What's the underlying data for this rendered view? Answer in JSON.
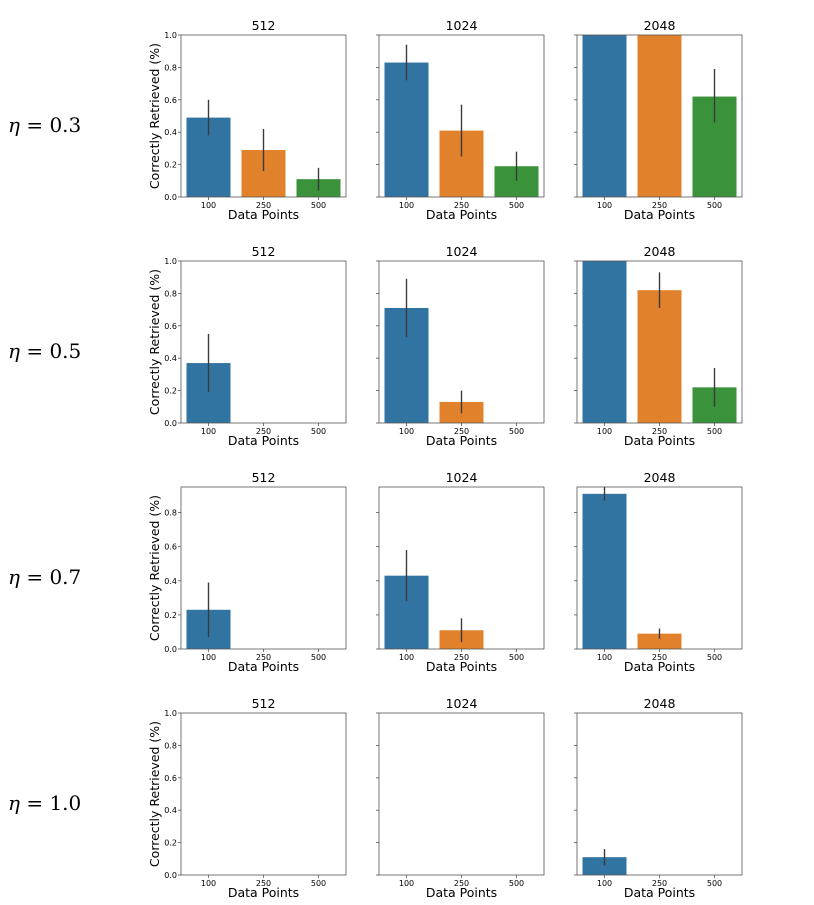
{
  "figure": {
    "row_symbol": "η",
    "xlabel": "Data Points",
    "ylabel": "Correctly Retrieved (%)",
    "colors": {
      "100": "#3274a1",
      "250": "#e1812c",
      "500": "#3a923a"
    }
  },
  "chart_data": [
    {
      "type": "bar",
      "row": "η = 0.3",
      "eta": "0.3",
      "title": "512",
      "categories": [
        "100",
        "250",
        "500"
      ],
      "values": [
        0.49,
        0.29,
        0.11
      ],
      "errors": [
        [
          0.38,
          0.6
        ],
        [
          0.16,
          0.42
        ],
        [
          0.04,
          0.18
        ]
      ],
      "ylim": [
        0,
        1.0
      ],
      "yticks": [
        "0.0",
        "0.2",
        "0.4",
        "0.6",
        "0.8",
        "1.0"
      ],
      "xlabel": "Data Points",
      "ylabel": "Correctly Retrieved (%)"
    },
    {
      "type": "bar",
      "row": "η = 0.3",
      "eta": "0.3",
      "title": "1024",
      "categories": [
        "100",
        "250",
        "500"
      ],
      "values": [
        0.83,
        0.41,
        0.19
      ],
      "errors": [
        [
          0.72,
          0.94
        ],
        [
          0.25,
          0.57
        ],
        [
          0.1,
          0.28
        ]
      ],
      "ylim": [
        0,
        1.0
      ],
      "yticks": [],
      "xlabel": "Data Points",
      "ylabel": ""
    },
    {
      "type": "bar",
      "row": "η = 0.3",
      "eta": "0.3",
      "title": "2048",
      "categories": [
        "100",
        "250",
        "500"
      ],
      "values": [
        1.0,
        1.0,
        0.62
      ],
      "errors": [
        null,
        null,
        [
          0.46,
          0.79
        ]
      ],
      "ylim": [
        0,
        1.0
      ],
      "yticks": [],
      "xlabel": "Data Points",
      "ylabel": ""
    },
    {
      "type": "bar",
      "row": "η = 0.5",
      "eta": "0.5",
      "title": "512",
      "categories": [
        "100",
        "250",
        "500"
      ],
      "values": [
        0.37,
        0,
        0
      ],
      "errors": [
        [
          0.19,
          0.55
        ],
        null,
        null
      ],
      "ylim": [
        0,
        1.0
      ],
      "yticks": [
        "0.0",
        "0.2",
        "0.4",
        "0.6",
        "0.8",
        "1.0"
      ],
      "xlabel": "Data Points",
      "ylabel": "Correctly Retrieved (%)"
    },
    {
      "type": "bar",
      "row": "η = 0.5",
      "eta": "0.5",
      "title": "1024",
      "categories": [
        "100",
        "250",
        "500"
      ],
      "values": [
        0.71,
        0.13,
        0
      ],
      "errors": [
        [
          0.53,
          0.89
        ],
        [
          0.06,
          0.2
        ],
        null
      ],
      "ylim": [
        0,
        1.0
      ],
      "yticks": [],
      "xlabel": "Data Points",
      "ylabel": ""
    },
    {
      "type": "bar",
      "row": "η = 0.5",
      "eta": "0.5",
      "title": "2048",
      "categories": [
        "100",
        "250",
        "500"
      ],
      "values": [
        1.0,
        0.82,
        0.22
      ],
      "errors": [
        null,
        [
          0.71,
          0.93
        ],
        [
          0.1,
          0.34
        ]
      ],
      "ylim": [
        0,
        1.0
      ],
      "yticks": [],
      "xlabel": "Data Points",
      "ylabel": ""
    },
    {
      "type": "bar",
      "row": "η = 0.7",
      "eta": "0.7",
      "title": "512",
      "categories": [
        "100",
        "250",
        "500"
      ],
      "values": [
        0.23,
        0,
        0
      ],
      "errors": [
        [
          0.07,
          0.39
        ],
        null,
        null
      ],
      "ylim": [
        0,
        0.95
      ],
      "yticks": [
        "0.0",
        "0.2",
        "0.4",
        "0.6",
        "0.8"
      ],
      "xlabel": "Data Points",
      "ylabel": "Correctly Retrieved (%)"
    },
    {
      "type": "bar",
      "row": "η = 0.7",
      "eta": "0.7",
      "title": "1024",
      "categories": [
        "100",
        "250",
        "500"
      ],
      "values": [
        0.43,
        0.11,
        0
      ],
      "errors": [
        [
          0.28,
          0.58
        ],
        [
          0.04,
          0.18
        ],
        null
      ],
      "ylim": [
        0,
        0.95
      ],
      "yticks": [],
      "xlabel": "Data Points",
      "ylabel": ""
    },
    {
      "type": "bar",
      "row": "η = 0.7",
      "eta": "0.7",
      "title": "2048",
      "categories": [
        "100",
        "250",
        "500"
      ],
      "values": [
        0.91,
        0.09,
        0
      ],
      "errors": [
        [
          0.87,
          0.95
        ],
        [
          0.06,
          0.12
        ],
        null
      ],
      "ylim": [
        0,
        0.95
      ],
      "yticks": [],
      "xlabel": "Data Points",
      "ylabel": ""
    },
    {
      "type": "bar",
      "row": "η = 1.0",
      "eta": "1.0",
      "title": "512",
      "categories": [
        "100",
        "250",
        "500"
      ],
      "values": [
        0,
        0,
        0
      ],
      "errors": [
        null,
        null,
        null
      ],
      "ylim": [
        0,
        1.0
      ],
      "yticks": [
        "0.0",
        "0.2",
        "0.4",
        "0.6",
        "0.8",
        "1.0"
      ],
      "xlabel": "Data Points",
      "ylabel": "Correctly Retrieved (%)"
    },
    {
      "type": "bar",
      "row": "η = 1.0",
      "eta": "1.0",
      "title": "1024",
      "categories": [
        "100",
        "250",
        "500"
      ],
      "values": [
        0,
        0,
        0
      ],
      "errors": [
        null,
        null,
        null
      ],
      "ylim": [
        0,
        1.0
      ],
      "yticks": [],
      "xlabel": "Data Points",
      "ylabel": ""
    },
    {
      "type": "bar",
      "row": "η = 1.0",
      "eta": "1.0",
      "title": "2048",
      "categories": [
        "100",
        "250",
        "500"
      ],
      "values": [
        0.11,
        0,
        0
      ],
      "errors": [
        [
          0.06,
          0.16
        ],
        null,
        null
      ],
      "ylim": [
        0,
        1.0
      ],
      "yticks": [],
      "xlabel": "Data Points",
      "ylabel": ""
    }
  ]
}
